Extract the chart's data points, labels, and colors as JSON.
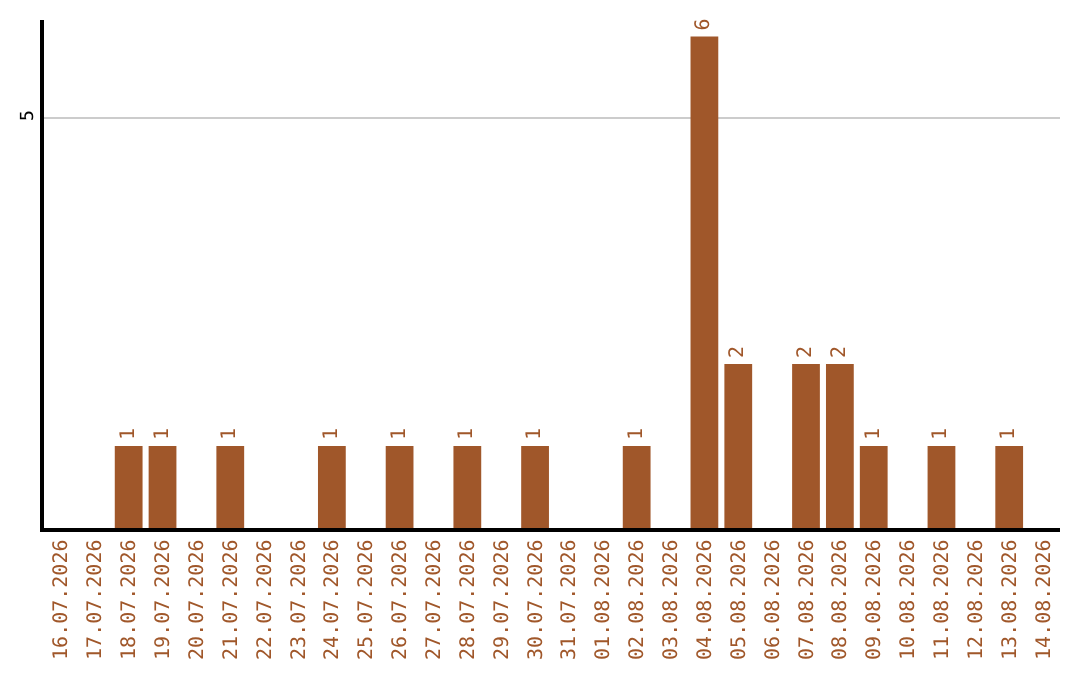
{
  "chart_data": {
    "type": "bar",
    "categories": [
      "16.07.2026",
      "17.07.2026",
      "18.07.2026",
      "19.07.2026",
      "20.07.2026",
      "21.07.2026",
      "22.07.2026",
      "23.07.2026",
      "24.07.2026",
      "25.07.2026",
      "26.07.2026",
      "27.07.2026",
      "28.07.2026",
      "29.07.2026",
      "30.07.2026",
      "31.07.2026",
      "01.08.2026",
      "02.08.2026",
      "03.08.2026",
      "04.08.2026",
      "05.08.2026",
      "06.08.2026",
      "07.08.2026",
      "08.08.2026",
      "09.08.2026",
      "10.08.2026",
      "11.08.2026",
      "12.08.2026",
      "13.08.2026",
      "14.08.2026"
    ],
    "values": [
      null,
      null,
      1,
      1,
      null,
      1,
      null,
      null,
      1,
      null,
      1,
      null,
      1,
      null,
      1,
      null,
      null,
      1,
      null,
      6,
      2,
      null,
      2,
      2,
      1,
      null,
      1,
      null,
      1,
      null
    ],
    "color": "#a0572a",
    "ylim": [
      0,
      6.2
    ],
    "yticks": [
      5
    ],
    "grid": "y",
    "data_labels": true
  }
}
